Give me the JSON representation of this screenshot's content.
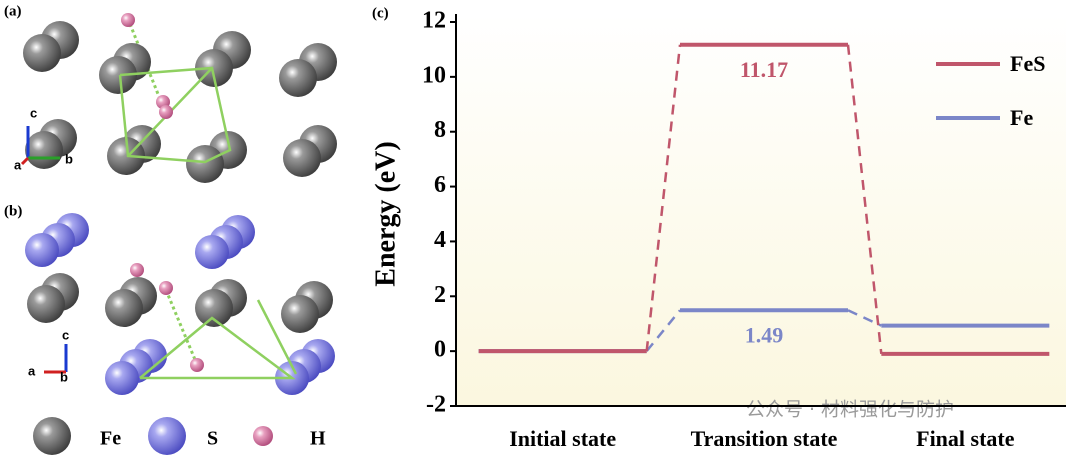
{
  "panel_labels": [
    "(a)",
    "(b)",
    "(c)"
  ],
  "axes_a": [
    "c",
    "a",
    "b"
  ],
  "axes_b": [
    "c",
    "a",
    "b"
  ],
  "atom_legend": [
    "Fe",
    "S",
    "H"
  ],
  "watermark": "公众号 · 材料强化与防护",
  "chart_data": {
    "type": "line",
    "ylabel": "Energy (eV)",
    "categories": [
      "Initial state",
      "Transition state",
      "Final state"
    ],
    "series": [
      {
        "name": "Fe",
        "color": "#7b86c8",
        "values": [
          0,
          1.49,
          0.93
        ]
      },
      {
        "name": "FeS",
        "color": "#c0566b",
        "values": [
          0,
          11.17,
          -0.1
        ]
      }
    ],
    "ylim": [
      -2,
      12
    ],
    "yticks": [
      -2,
      0,
      2,
      4,
      6,
      8,
      10,
      12
    ],
    "legend": "upper right"
  }
}
